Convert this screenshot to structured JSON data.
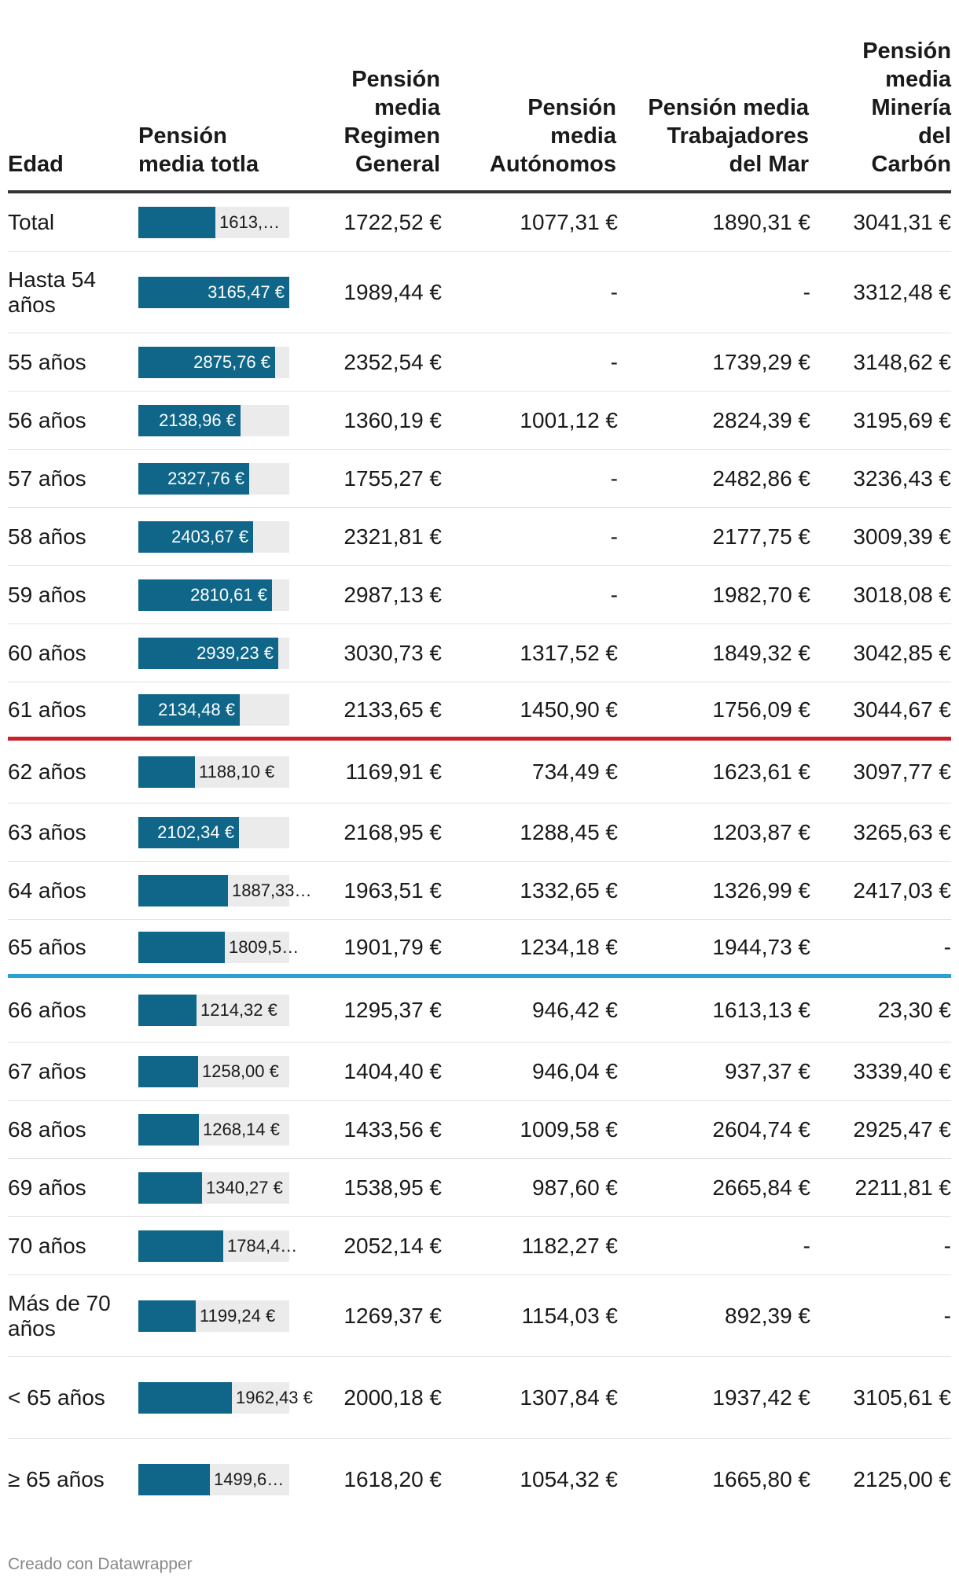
{
  "headers": {
    "age": "Edad",
    "total": "Pensión media totla",
    "general": "Pensión media Regimen General",
    "autonomos": "Pensión media Autónomos",
    "mar": "Pensión media Trabajadores del Mar",
    "mineria": "Pensión media Minería del Carbón"
  },
  "bar_max": 3165.47,
  "bar_color": "#0f6689",
  "separator_colors": {
    "red": "#c8212b",
    "blue": "#2aa1d3"
  },
  "rows": [
    {
      "age": "Total",
      "total_value": 1613.0,
      "total_label": "1613,…",
      "general": "1722,52 €",
      "autonomos": "1077,31 €",
      "mar": "1890,31 €",
      "mineria": "3041,31 €"
    },
    {
      "age": "Hasta 54 años",
      "total_value": 3165.47,
      "total_label": "3165,47 €",
      "general": "1989,44 €",
      "autonomos": "-",
      "mar": "-",
      "mineria": "3312,48 €"
    },
    {
      "age": "55 años",
      "total_value": 2875.76,
      "total_label": "2875,76 €",
      "general": "2352,54 €",
      "autonomos": "-",
      "mar": "1739,29 €",
      "mineria": "3148,62 €"
    },
    {
      "age": "56 años",
      "total_value": 2138.96,
      "total_label": "2138,96 €",
      "general": "1360,19 €",
      "autonomos": "1001,12 €",
      "mar": "2824,39 €",
      "mineria": "3195,69 €"
    },
    {
      "age": "57 años",
      "total_value": 2327.76,
      "total_label": "2327,76 €",
      "general": "1755,27 €",
      "autonomos": "-",
      "mar": "2482,86 €",
      "mineria": "3236,43 €"
    },
    {
      "age": "58 años",
      "total_value": 2403.67,
      "total_label": "2403,67 €",
      "general": "2321,81 €",
      "autonomos": "-",
      "mar": "2177,75 €",
      "mineria": "3009,39 €"
    },
    {
      "age": "59 años",
      "total_value": 2810.61,
      "total_label": "2810,61 €",
      "general": "2987,13 €",
      "autonomos": "-",
      "mar": "1982,70 €",
      "mineria": "3018,08 €"
    },
    {
      "age": "60 años",
      "total_value": 2939.23,
      "total_label": "2939,23 €",
      "general": "3030,73 €",
      "autonomos": "1317,52 €",
      "mar": "1849,32 €",
      "mineria": "3042,85 €"
    },
    {
      "age": "61 años",
      "total_value": 2134.48,
      "total_label": "2134,48 €",
      "general": "2133,65 €",
      "autonomos": "1450,90 €",
      "mar": "1756,09 €",
      "mineria": "3044,67 €"
    },
    {
      "age": "62 años",
      "total_value": 1188.1,
      "total_label": "1188,10 €",
      "general": "1169,91 €",
      "autonomos": "734,49 €",
      "mar": "1623,61 €",
      "mineria": "3097,77 €"
    },
    {
      "age": "63 años",
      "total_value": 2102.34,
      "total_label": "2102,34 €",
      "general": "2168,95 €",
      "autonomos": "1288,45 €",
      "mar": "1203,87 €",
      "mineria": "3265,63 €"
    },
    {
      "age": "64 años",
      "total_value": 1887.33,
      "total_label": "1887,33…",
      "general": "1963,51 €",
      "autonomos": "1332,65 €",
      "mar": "1326,99 €",
      "mineria": "2417,03 €"
    },
    {
      "age": "65 años",
      "total_value": 1809.5,
      "total_label": "1809,5…",
      "general": "1901,79 €",
      "autonomos": "1234,18 €",
      "mar": "1944,73 €",
      "mineria": "-"
    },
    {
      "age": "66 años",
      "total_value": 1214.32,
      "total_label": "1214,32 €",
      "general": "1295,37 €",
      "autonomos": "946,42 €",
      "mar": "1613,13 €",
      "mineria": "23,30 €"
    },
    {
      "age": "67 años",
      "total_value": 1258.0,
      "total_label": "1258,00 €",
      "general": "1404,40 €",
      "autonomos": "946,04 €",
      "mar": "937,37 €",
      "mineria": "3339,40 €"
    },
    {
      "age": "68 años",
      "total_value": 1268.14,
      "total_label": "1268,14 €",
      "general": "1433,56 €",
      "autonomos": "1009,58 €",
      "mar": "2604,74 €",
      "mineria": "2925,47 €"
    },
    {
      "age": "69 años",
      "total_value": 1340.27,
      "total_label": "1340,27 €",
      "general": "1538,95 €",
      "autonomos": "987,60 €",
      "mar": "2665,84 €",
      "mineria": "2211,81 €"
    },
    {
      "age": "70 años",
      "total_value": 1784.4,
      "total_label": "1784,4…",
      "general": "2052,14 €",
      "autonomos": "1182,27 €",
      "mar": "-",
      "mineria": "-"
    },
    {
      "age": "Más de 70 años",
      "total_value": 1199.24,
      "total_label": "1199,24 €",
      "general": "1269,37 €",
      "autonomos": "1154,03 €",
      "mar": "892,39 €",
      "mineria": "-"
    },
    {
      "age": "< 65 años",
      "total_value": 1962.43,
      "total_label": "1962,43 €",
      "general": "2000,18 €",
      "autonomos": "1307,84 €",
      "mar": "1937,42 €",
      "mineria": "3105,61 €"
    },
    {
      "age": "≥ 65 años",
      "total_value": 1499.6,
      "total_label": "1499,6…",
      "general": "1618,20 €",
      "autonomos": "1054,32 €",
      "mar": "1665,80 €",
      "mineria": "2125,00 €"
    }
  ],
  "footer": "Creado con Datawrapper"
}
